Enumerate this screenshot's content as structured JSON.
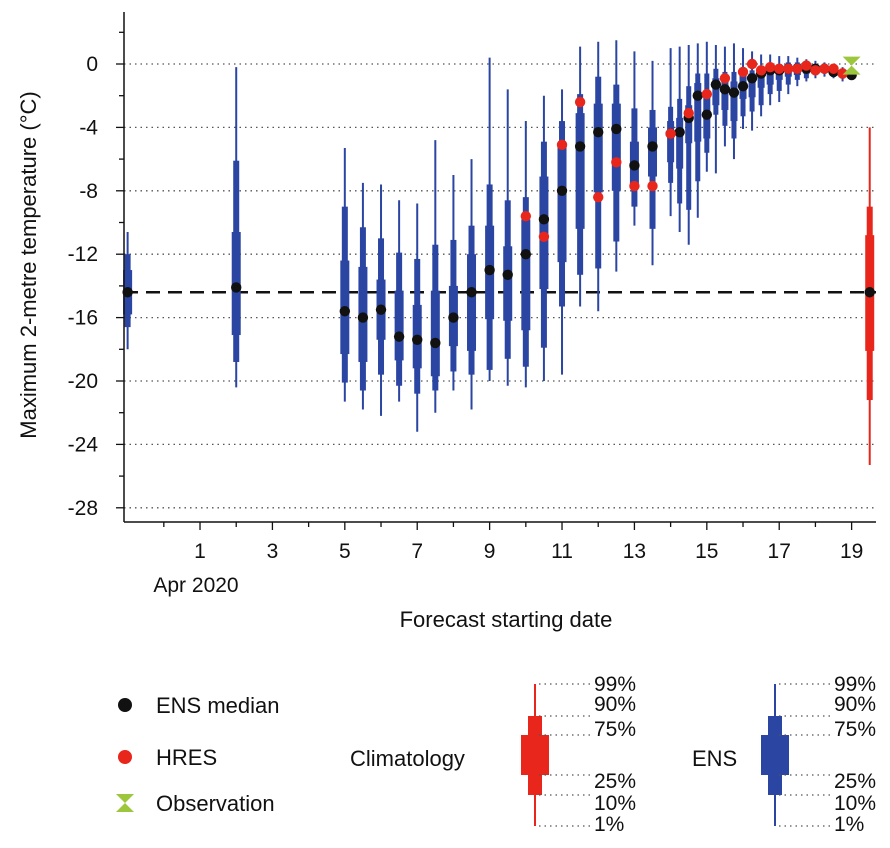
{
  "chart_data": {
    "type": "box",
    "ylabel": "Maximum 2-metre temperature (°C)",
    "xlabel": "Forecast starting date",
    "x_month_label": "Apr 2020",
    "ylim": [
      -29,
      3
    ],
    "yticks": [
      0,
      -4,
      -8,
      -12,
      -16,
      -20,
      -24,
      -28
    ],
    "ytick_labels": [
      "0",
      "-4",
      "-8",
      "-12",
      "-16",
      "-20",
      "-24",
      "-28"
    ],
    "xlim": [
      -1.1,
      19.6
    ],
    "xticks": [
      1,
      3,
      5,
      7,
      9,
      11,
      13,
      15,
      17,
      19
    ],
    "xtick_labels": [
      "1",
      "3",
      "5",
      "7",
      "9",
      "11",
      "13",
      "15",
      "17",
      "19"
    ],
    "climatology_median_line": -14.4,
    "grid": "horizontal dotted",
    "ens_boxes": [
      {
        "x": -1.0,
        "p1": -18.0,
        "p10": -16.6,
        "p25": -15.8,
        "median": -14.4,
        "p75": -13.0,
        "p90": -12.0,
        "p99": -10.6
      },
      {
        "x": 2.0,
        "p1": -20.4,
        "p10": -18.8,
        "p25": -17.1,
        "median": -14.1,
        "p75": -10.6,
        "p90": -6.1,
        "p99": -0.2
      },
      {
        "x": 5.0,
        "p1": -21.3,
        "p10": -20.1,
        "p25": -18.3,
        "median": -15.6,
        "p75": -12.4,
        "p90": -9.0,
        "p99": -5.3
      },
      {
        "x": 5.5,
        "p1": -21.8,
        "p10": -20.6,
        "p25": -18.8,
        "median": -16.0,
        "p75": -12.8,
        "p90": -10.3,
        "p99": -7.5
      },
      {
        "x": 6.0,
        "p1": -22.2,
        "p10": -19.6,
        "p25": -17.4,
        "median": -15.5,
        "p75": -13.6,
        "p90": -11.0,
        "p99": -7.6
      },
      {
        "x": 6.5,
        "p1": -21.3,
        "p10": -20.3,
        "p25": -18.7,
        "median": -17.2,
        "p75": -14.3,
        "p90": -11.9,
        "p99": -8.6
      },
      {
        "x": 7.0,
        "p1": -23.2,
        "p10": -20.8,
        "p25": -19.2,
        "median": -17.4,
        "p75": -15.2,
        "p90": -12.3,
        "p99": -8.8
      },
      {
        "x": 7.5,
        "p1": -22.0,
        "p10": -20.6,
        "p25": -19.7,
        "median": -17.6,
        "p75": -14.3,
        "p90": -11.4,
        "p99": -4.8
      },
      {
        "x": 8.0,
        "p1": -20.6,
        "p10": -19.4,
        "p25": -17.8,
        "median": -16.0,
        "p75": -14.0,
        "p90": -11.1,
        "p99": -7.0
      },
      {
        "x": 8.5,
        "p1": -21.8,
        "p10": -19.6,
        "p25": -18.1,
        "median": -14.4,
        "p75": -12.0,
        "p90": -10.2,
        "p99": -6.0
      },
      {
        "x": 9.0,
        "p1": -20.0,
        "p10": -19.3,
        "p25": -16.1,
        "median": -13.0,
        "p75": -10.2,
        "p90": -7.6,
        "p99": 0.4
      },
      {
        "x": 9.5,
        "p1": -20.3,
        "p10": -18.6,
        "p25": -16.2,
        "median": -13.3,
        "p75": -11.5,
        "p90": -8.6,
        "p99": -1.6
      },
      {
        "x": 10.0,
        "p1": -20.4,
        "p10": -19.1,
        "p25": -16.8,
        "median": -12.0,
        "p75": -9.8,
        "p90": -8.4,
        "p99": -3.6
      },
      {
        "x": 10.5,
        "p1": -20.0,
        "p10": -17.9,
        "p25": -14.2,
        "median": -9.8,
        "p75": -7.1,
        "p90": -4.9,
        "p99": -2.0
      },
      {
        "x": 11.0,
        "p1": -19.6,
        "p10": -15.3,
        "p25": -12.5,
        "median": -8.0,
        "p75": -5.1,
        "p90": -3.6,
        "p99": -1.6
      },
      {
        "x": 11.5,
        "p1": -15.3,
        "p10": -13.3,
        "p25": -10.4,
        "median": -5.2,
        "p75": -3.1,
        "p90": -1.9,
        "p99": 1.1
      },
      {
        "x": 12.0,
        "p1": -15.6,
        "p10": -12.9,
        "p25": -8.1,
        "median": -4.3,
        "p75": -2.5,
        "p90": -0.8,
        "p99": 1.4
      },
      {
        "x": 12.5,
        "p1": -13.1,
        "p10": -11.2,
        "p25": -8.0,
        "median": -4.1,
        "p75": -2.5,
        "p90": -1.3,
        "p99": 1.5
      },
      {
        "x": 13.0,
        "p1": -10.2,
        "p10": -9.0,
        "p25": -7.8,
        "median": -6.4,
        "p75": -4.9,
        "p90": -2.8,
        "p99": 0.8
      },
      {
        "x": 13.5,
        "p1": -12.7,
        "p10": -10.4,
        "p25": -7.1,
        "median": -5.2,
        "p75": -4.0,
        "p90": -2.9,
        "p99": 0.2
      },
      {
        "x": 14.0,
        "p1": -9.6,
        "p10": -7.5,
        "p25": -6.2,
        "median": -4.4,
        "p75": -3.6,
        "p90": -2.7,
        "p99": 1.0
      },
      {
        "x": 14.25,
        "p1": -10.6,
        "p10": -8.8,
        "p25": -6.6,
        "median": -4.3,
        "p75": -3.4,
        "p90": -2.2,
        "p99": 1.1
      },
      {
        "x": 14.5,
        "p1": -11.4,
        "p10": -9.2,
        "p25": -5.0,
        "median": -3.4,
        "p75": -2.6,
        "p90": -1.4,
        "p99": 1.2
      },
      {
        "x": 14.75,
        "p1": -9.7,
        "p10": -7.4,
        "p25": -4.9,
        "median": -2.0,
        "p75": -1.2,
        "p90": -0.6,
        "p99": 1.3
      },
      {
        "x": 15.0,
        "p1": -6.8,
        "p10": -5.6,
        "p25": -4.7,
        "median": -3.2,
        "p75": -1.7,
        "p90": -0.6,
        "p99": 1.4
      },
      {
        "x": 15.25,
        "p1": -6.9,
        "p10": -3.2,
        "p25": -2.6,
        "median": -1.3,
        "p75": -0.9,
        "p90": -0.3,
        "p99": 1.2
      },
      {
        "x": 15.5,
        "p1": -5.2,
        "p10": -3.9,
        "p25": -2.9,
        "median": -1.6,
        "p75": -0.9,
        "p90": -0.5,
        "p99": 1.1
      },
      {
        "x": 15.75,
        "p1": -6.0,
        "p10": -4.7,
        "p25": -3.6,
        "median": -1.8,
        "p75": -1.1,
        "p90": -0.5,
        "p99": 1.3
      },
      {
        "x": 16.0,
        "p1": -4.1,
        "p10": -3.3,
        "p25": -2.2,
        "median": -1.4,
        "p75": -0.7,
        "p90": -0.4,
        "p99": 1.0
      },
      {
        "x": 16.25,
        "p1": -4.2,
        "p10": -3.0,
        "p25": -2.1,
        "median": -0.9,
        "p75": -0.6,
        "p90": -0.4,
        "p99": 0.8
      },
      {
        "x": 16.5,
        "p1": -3.3,
        "p10": -2.6,
        "p25": -1.5,
        "median": -0.6,
        "p75": -0.3,
        "p90": -0.1,
        "p99": 0.6
      },
      {
        "x": 16.75,
        "p1": -2.6,
        "p10": -1.9,
        "p25": -1.3,
        "median": -0.4,
        "p75": -0.1,
        "p90": 0.0,
        "p99": 0.6
      },
      {
        "x": 17.0,
        "p1": -2.4,
        "p10": -1.7,
        "p25": -1.0,
        "median": -0.4,
        "p75": -0.1,
        "p90": 0.0,
        "p99": 0.5
      },
      {
        "x": 17.25,
        "p1": -1.9,
        "p10": -1.3,
        "p25": -0.8,
        "median": -0.3,
        "p75": 0.0,
        "p90": 0.1,
        "p99": 0.5
      },
      {
        "x": 17.5,
        "p1": -1.4,
        "p10": -1.0,
        "p25": -0.7,
        "median": -0.3,
        "p75": 0.0,
        "p90": 0.1,
        "p99": 0.4
      },
      {
        "x": 17.75,
        "p1": -1.1,
        "p10": -0.9,
        "p25": -0.6,
        "median": -0.3,
        "p75": -0.1,
        "p90": 0.0,
        "p99": 0.3
      },
      {
        "x": 18.0,
        "p1": -0.9,
        "p10": -0.7,
        "p25": -0.5,
        "median": -0.3,
        "p75": -0.1,
        "p90": 0.0,
        "p99": 0.2
      },
      {
        "x": 18.25,
        "p1": -0.8,
        "p10": -0.6,
        "p25": -0.5,
        "median": -0.3,
        "p75": -0.2,
        "p90": -0.1,
        "p99": 0.1
      },
      {
        "x": 18.5,
        "p1": -0.9,
        "p10": -0.8,
        "p25": -0.6,
        "median": -0.5,
        "p75": -0.3,
        "p90": -0.2,
        "p99": 0.0
      },
      {
        "x": 18.75,
        "p1": -1.1,
        "p10": -0.9,
        "p25": -0.8,
        "median": -0.6,
        "p75": -0.5,
        "p90": -0.3,
        "p99": -0.2
      },
      {
        "x": 19.0,
        "p1": -1.0,
        "p10": -0.9,
        "p25": -0.8,
        "median": -0.7,
        "p75": -0.6,
        "p90": -0.5,
        "p99": -0.4
      }
    ],
    "climatology_box": {
      "x": 19.5,
      "p1": -25.3,
      "p10": -21.2,
      "p25": -18.1,
      "median": -14.4,
      "p75": -10.8,
      "p90": -9.0,
      "p99": -4.0
    },
    "hres": [
      {
        "x": 10.0,
        "y": -9.6
      },
      {
        "x": 10.5,
        "y": -10.9
      },
      {
        "x": 11.0,
        "y": -5.1
      },
      {
        "x": 11.5,
        "y": -2.4
      },
      {
        "x": 12.0,
        "y": -8.4
      },
      {
        "x": 12.5,
        "y": -6.2
      },
      {
        "x": 13.0,
        "y": -7.7
      },
      {
        "x": 13.5,
        "y": -7.7
      },
      {
        "x": 14.0,
        "y": -4.4
      },
      {
        "x": 14.5,
        "y": -3.1
      },
      {
        "x": 15.0,
        "y": -1.9
      },
      {
        "x": 15.5,
        "y": -0.9
      },
      {
        "x": 16.0,
        "y": -0.5
      },
      {
        "x": 16.25,
        "y": 0.0
      },
      {
        "x": 16.5,
        "y": -0.4
      },
      {
        "x": 16.75,
        "y": -0.2
      },
      {
        "x": 17.0,
        "y": -0.3
      },
      {
        "x": 17.25,
        "y": -0.3
      },
      {
        "x": 17.5,
        "y": -0.3
      },
      {
        "x": 17.75,
        "y": -0.1
      },
      {
        "x": 18.0,
        "y": -0.4
      },
      {
        "x": 18.25,
        "y": -0.3
      },
      {
        "x": 18.5,
        "y": -0.3
      },
      {
        "x": 18.75,
        "y": -0.6
      }
    ],
    "observation": {
      "x": 19.0,
      "y": -0.1
    },
    "legend": {
      "ens_median": "ENS median",
      "hres": "HRES",
      "observation": "Observation",
      "climatology": "Climatology",
      "ens": "ENS",
      "percentiles": [
        "99%",
        "90%",
        "75%",
        "25%",
        "10%",
        "1%"
      ]
    },
    "colors": {
      "ens": "#2b45a3",
      "climatology": "#e8261c",
      "median": "#111111",
      "hres": "#e8261c",
      "observation": "#9cc63b"
    }
  }
}
